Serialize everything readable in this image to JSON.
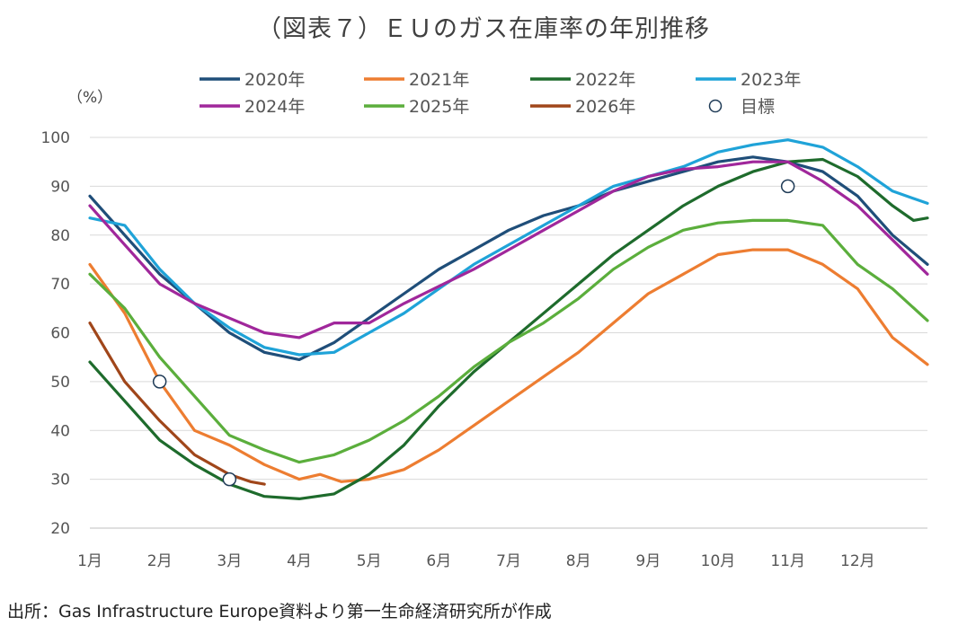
{
  "title": "（図表７）ＥＵのガス在庫率の年別推移",
  "source": "出所：Gas Infrastructure Europe資料より第一生命経済研究所が作成",
  "chart_data": {
    "type": "line",
    "title": "（図表７）ＥＵのガス在庫率の年別推移",
    "ylabel": "（%）",
    "xlabel": "",
    "ylim": [
      20,
      100
    ],
    "yticks": [
      20,
      30,
      40,
      50,
      60,
      70,
      80,
      90,
      100
    ],
    "x_range": [
      0,
      12
    ],
    "x_ticks": [
      {
        "x": 0,
        "label": "1月"
      },
      {
        "x": 1,
        "label": "2月"
      },
      {
        "x": 2,
        "label": "3月"
      },
      {
        "x": 3,
        "label": "4月"
      },
      {
        "x": 4,
        "label": "5月"
      },
      {
        "x": 5,
        "label": "6月"
      },
      {
        "x": 6,
        "label": "7月"
      },
      {
        "x": 7,
        "label": "8月"
      },
      {
        "x": 8,
        "label": "9月"
      },
      {
        "x": 9,
        "label": "10月"
      },
      {
        "x": 10,
        "label": "11月"
      },
      {
        "x": 11,
        "label": "12月"
      }
    ],
    "grid": true,
    "legend_position": "top",
    "series": [
      {
        "name": "2020年",
        "color": "#1f4e79",
        "points": [
          [
            0,
            88
          ],
          [
            0.5,
            80
          ],
          [
            1,
            72
          ],
          [
            1.5,
            66
          ],
          [
            2,
            60
          ],
          [
            2.5,
            56
          ],
          [
            3,
            54.5
          ],
          [
            3.5,
            58
          ],
          [
            4,
            63
          ],
          [
            4.5,
            68
          ],
          [
            5,
            73
          ],
          [
            5.5,
            77
          ],
          [
            6,
            81
          ],
          [
            6.5,
            84
          ],
          [
            7,
            86
          ],
          [
            7.5,
            89
          ],
          [
            8,
            91
          ],
          [
            8.5,
            93
          ],
          [
            9,
            95
          ],
          [
            9.5,
            96
          ],
          [
            10,
            95
          ],
          [
            10.5,
            93
          ],
          [
            11,
            88
          ],
          [
            11.5,
            80
          ],
          [
            12,
            74
          ]
        ]
      },
      {
        "name": "2021年",
        "color": "#ed7d31",
        "points": [
          [
            0,
            74
          ],
          [
            0.5,
            64
          ],
          [
            1,
            50
          ],
          [
            1.5,
            40
          ],
          [
            2,
            37
          ],
          [
            2.5,
            33
          ],
          [
            3,
            30
          ],
          [
            3.3,
            31
          ],
          [
            3.6,
            29.5
          ],
          [
            4,
            30
          ],
          [
            4.5,
            32
          ],
          [
            5,
            36
          ],
          [
            5.5,
            41
          ],
          [
            6,
            46
          ],
          [
            6.5,
            51
          ],
          [
            7,
            56
          ],
          [
            7.5,
            62
          ],
          [
            8,
            68
          ],
          [
            8.5,
            72
          ],
          [
            9,
            76
          ],
          [
            9.5,
            77
          ],
          [
            10,
            77
          ],
          [
            10.5,
            74
          ],
          [
            11,
            69
          ],
          [
            11.5,
            59
          ],
          [
            12,
            53.5
          ]
        ]
      },
      {
        "name": "2022年",
        "color": "#1e6b2c",
        "points": [
          [
            0,
            54
          ],
          [
            0.5,
            46
          ],
          [
            1,
            38
          ],
          [
            1.5,
            33
          ],
          [
            2,
            29
          ],
          [
            2.5,
            26.5
          ],
          [
            3,
            26
          ],
          [
            3.5,
            27
          ],
          [
            4,
            31
          ],
          [
            4.5,
            37
          ],
          [
            5,
            45
          ],
          [
            5.5,
            52
          ],
          [
            6,
            58
          ],
          [
            6.5,
            64
          ],
          [
            7,
            70
          ],
          [
            7.5,
            76
          ],
          [
            8,
            81
          ],
          [
            8.5,
            86
          ],
          [
            9,
            90
          ],
          [
            9.5,
            93
          ],
          [
            10,
            95
          ],
          [
            10.5,
            95.5
          ],
          [
            11,
            92
          ],
          [
            11.5,
            86
          ],
          [
            11.8,
            83
          ],
          [
            12,
            83.5
          ]
        ]
      },
      {
        "name": "2023年",
        "color": "#1fa3d8",
        "points": [
          [
            0,
            83.5
          ],
          [
            0.5,
            82
          ],
          [
            1,
            73
          ],
          [
            1.5,
            66
          ],
          [
            2,
            61
          ],
          [
            2.5,
            57
          ],
          [
            3,
            55.5
          ],
          [
            3.5,
            56
          ],
          [
            4,
            60
          ],
          [
            4.5,
            64
          ],
          [
            5,
            69
          ],
          [
            5.5,
            74
          ],
          [
            6,
            78
          ],
          [
            6.5,
            82
          ],
          [
            7,
            86
          ],
          [
            7.5,
            90
          ],
          [
            8,
            92
          ],
          [
            8.5,
            94
          ],
          [
            9,
            97
          ],
          [
            9.5,
            98.5
          ],
          [
            10,
            99.5
          ],
          [
            10.5,
            98
          ],
          [
            11,
            94
          ],
          [
            11.5,
            89
          ],
          [
            12,
            86.5
          ]
        ]
      },
      {
        "name": "2024年",
        "color": "#a0279b",
        "points": [
          [
            0,
            86
          ],
          [
            0.5,
            78
          ],
          [
            1,
            70
          ],
          [
            1.5,
            66
          ],
          [
            2,
            63
          ],
          [
            2.5,
            60
          ],
          [
            3,
            59
          ],
          [
            3.5,
            62
          ],
          [
            4,
            62
          ],
          [
            4.5,
            66
          ],
          [
            5,
            69.5
          ],
          [
            5.5,
            73
          ],
          [
            6,
            77
          ],
          [
            6.5,
            81
          ],
          [
            7,
            85
          ],
          [
            7.5,
            89
          ],
          [
            8,
            92
          ],
          [
            8.5,
            93.5
          ],
          [
            9,
            94
          ],
          [
            9.5,
            95
          ],
          [
            10,
            95
          ],
          [
            10.5,
            91
          ],
          [
            11,
            86
          ],
          [
            11.5,
            79
          ],
          [
            12,
            72
          ]
        ]
      },
      {
        "name": "2025年",
        "color": "#5bae3c",
        "points": [
          [
            0,
            72
          ],
          [
            0.5,
            65
          ],
          [
            1,
            55
          ],
          [
            1.5,
            47
          ],
          [
            2,
            39
          ],
          [
            2.5,
            36
          ],
          [
            3,
            33.5
          ],
          [
            3.5,
            35
          ],
          [
            4,
            38
          ],
          [
            4.5,
            42
          ],
          [
            5,
            47
          ],
          [
            5.5,
            53
          ],
          [
            6,
            58
          ],
          [
            6.5,
            62
          ],
          [
            7,
            67
          ],
          [
            7.5,
            73
          ],
          [
            8,
            77.5
          ],
          [
            8.5,
            81
          ],
          [
            9,
            82.5
          ],
          [
            9.5,
            83
          ],
          [
            10,
            83
          ],
          [
            10.5,
            82
          ],
          [
            11,
            74
          ],
          [
            11.5,
            69
          ],
          [
            12,
            62.5
          ]
        ]
      },
      {
        "name": "2026年",
        "color": "#a0461a",
        "points": [
          [
            0,
            62
          ],
          [
            0.25,
            56
          ],
          [
            0.5,
            50
          ],
          [
            1,
            42
          ],
          [
            1.5,
            35
          ],
          [
            2,
            31
          ],
          [
            2.3,
            29.5
          ],
          [
            2.5,
            29
          ]
        ]
      }
    ],
    "markers": {
      "name": "目標",
      "points": [
        [
          1,
          50
        ],
        [
          2,
          30
        ],
        [
          10,
          90
        ]
      ]
    }
  }
}
